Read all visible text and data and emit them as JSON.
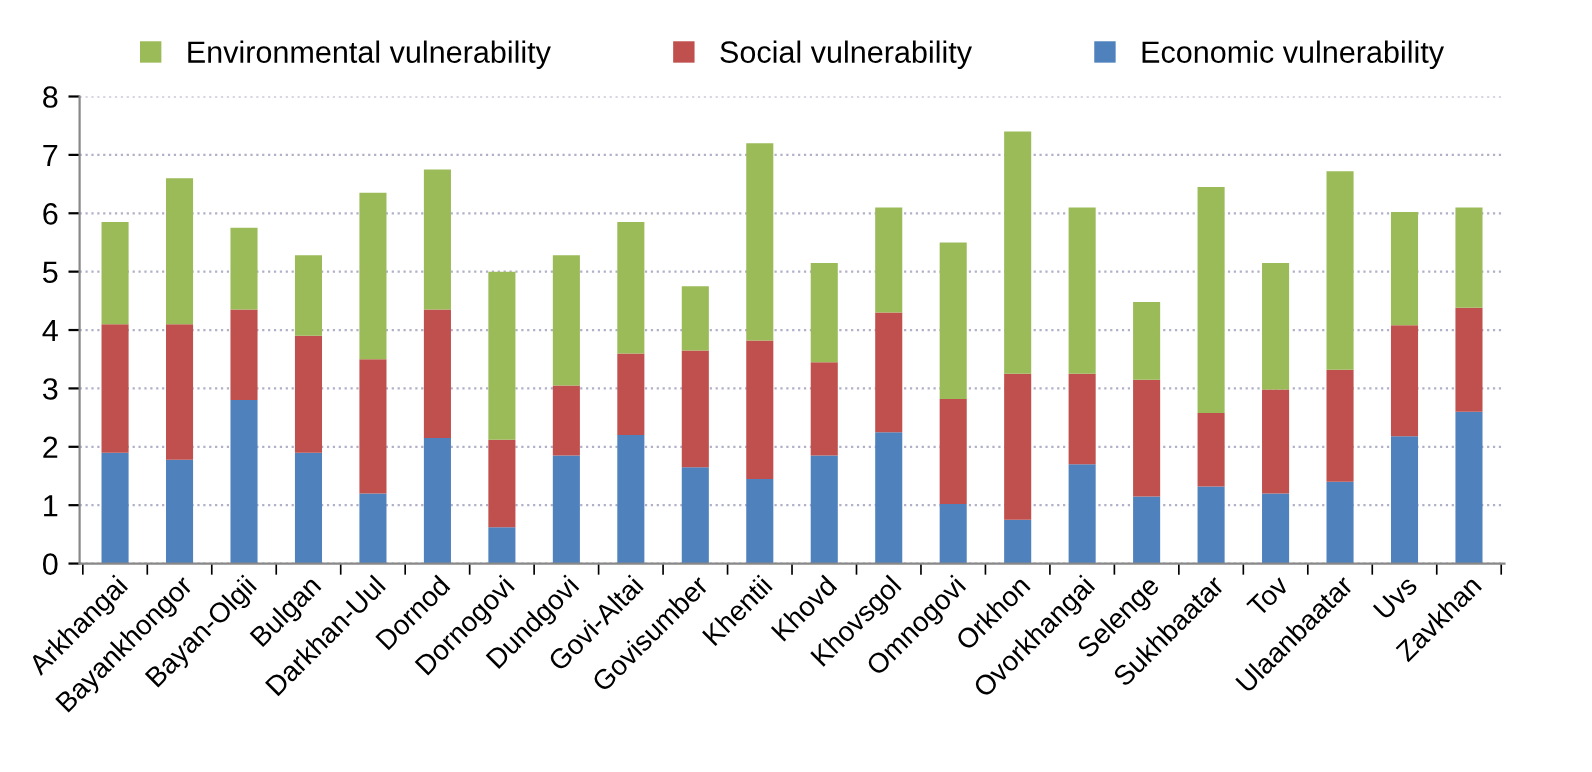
{
  "chart_data": {
    "type": "bar",
    "stacked": true,
    "categories": [
      "Arkhangai",
      "Bayankhongor",
      "Bayan-Olgii",
      "Bulgan",
      "Darkhan-Uul",
      "Dornod",
      "Dornogovi",
      "Dundgovi",
      "Govi-Altai",
      "Govisumber",
      "Khentii",
      "Khovd",
      "Khovsgol",
      "Omnogovi",
      "Orkhon",
      "Ovorkhangai",
      "Selenge",
      "Sukhbaatar",
      "Tov",
      "Ulaanbaatar",
      "Uvs",
      "Zavkhan"
    ],
    "series": [
      {
        "name": "Economic vulnerability",
        "color": "#4f81bd",
        "values": [
          1.9,
          1.78,
          2.8,
          1.9,
          1.2,
          2.15,
          0.62,
          1.85,
          2.2,
          1.65,
          1.45,
          1.85,
          2.25,
          1.02,
          0.75,
          1.7,
          1.15,
          1.32,
          1.2,
          1.4,
          2.18,
          2.6
        ]
      },
      {
        "name": "Social vulnerability",
        "color": "#c0504d",
        "values": [
          2.2,
          2.32,
          1.55,
          2.0,
          2.3,
          2.2,
          1.5,
          1.2,
          1.4,
          2.0,
          2.37,
          1.6,
          2.05,
          1.8,
          2.5,
          1.55,
          2.0,
          1.26,
          1.78,
          1.92,
          1.9,
          1.78
        ]
      },
      {
        "name": "Environmental vulnerability",
        "color": "#9bbb59",
        "values": [
          1.75,
          2.5,
          1.4,
          1.38,
          2.85,
          2.4,
          2.88,
          2.23,
          2.25,
          1.1,
          3.38,
          1.7,
          1.8,
          2.68,
          4.15,
          2.85,
          1.33,
          3.87,
          2.17,
          3.4,
          1.94,
          1.72
        ]
      }
    ],
    "ylim": [
      0,
      8
    ],
    "yticks": [
      0,
      1,
      2,
      3,
      4,
      5,
      6,
      7,
      8
    ],
    "grid": "y",
    "legend": "top"
  }
}
